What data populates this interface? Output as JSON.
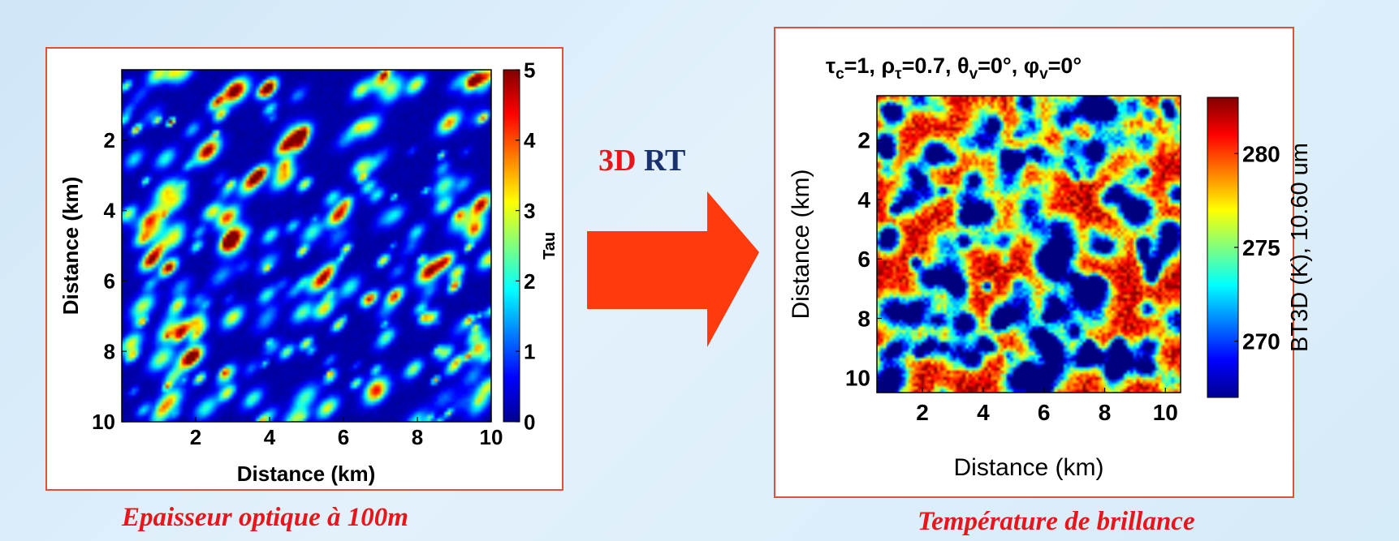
{
  "arrow_label": {
    "part1": "3D",
    "part2": "RT"
  },
  "chart_data": [
    {
      "type": "heatmap",
      "title": "",
      "xlabel": "Distance (km)",
      "ylabel": "Distance (km)",
      "xlim": [
        0,
        10
      ],
      "ylim": [
        10,
        0
      ],
      "x_ticks": [
        2,
        4,
        6,
        8,
        10
      ],
      "y_ticks": [
        2,
        4,
        6,
        8,
        10
      ],
      "colorbar": {
        "label": "Tau",
        "range": [
          0,
          5
        ],
        "ticks": [
          0,
          1,
          2,
          3,
          4,
          5
        ]
      },
      "colormap": "jet",
      "caption": "Epaisseur optique à  100m"
    },
    {
      "type": "heatmap",
      "title": "τ",
      "title_parts": [
        {
          "t": "τ"
        },
        {
          "t": "c",
          "sub": true
        },
        {
          "t": "=1,  "
        },
        {
          "t": "ρ"
        },
        {
          "t": "τ",
          "sub": true
        },
        {
          "t": "=0.7,  "
        },
        {
          "t": "θ"
        },
        {
          "t": "v",
          "sub": true
        },
        {
          "t": "=0°,  "
        },
        {
          "t": "φ"
        },
        {
          "t": "v",
          "sub": true
        },
        {
          "t": "=0°"
        }
      ],
      "xlabel": "Distance (km)",
      "ylabel": "Distance (km)",
      "xlim": [
        0.5,
        10.5
      ],
      "ylim": [
        10.5,
        0.5
      ],
      "x_ticks": [
        2,
        4,
        6,
        8,
        10
      ],
      "y_ticks": [
        2,
        4,
        6,
        8,
        10
      ],
      "colorbar": {
        "label": "BT3D (K), 10.60 um",
        "range": [
          267,
          283
        ],
        "ticks": [
          270,
          275,
          280
        ]
      },
      "colormap": "jet",
      "caption": "Température de brillance"
    }
  ],
  "colors": {
    "border": "#e0513a",
    "arrow": "#ff3b0e",
    "caption": "#e8161b",
    "rt_blue": "#1a3170"
  }
}
